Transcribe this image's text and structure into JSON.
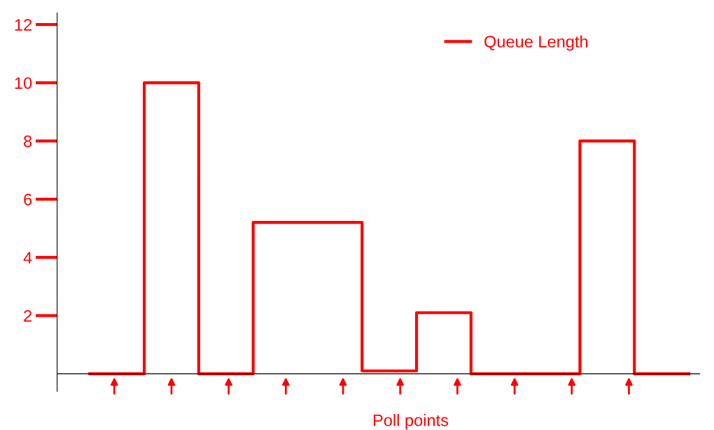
{
  "chart_data": {
    "type": "step",
    "xlabel": "Poll points",
    "categories": [
      null,
      null,
      null,
      null,
      null,
      null,
      null,
      null,
      null,
      null,
      null,
      null
    ],
    "series": [
      {
        "name": "Queue Length",
        "color": "#ff0000",
        "values": [
          0,
          10,
          0,
          5.2,
          5.2,
          0.1,
          2.1,
          0,
          0,
          8,
          0,
          0
        ]
      }
    ],
    "ylim": [
      -0.6,
      12.4
    ],
    "yticks": [
      2,
      4,
      6,
      8,
      10,
      12
    ],
    "grid": false,
    "legend": "top right"
  }
}
